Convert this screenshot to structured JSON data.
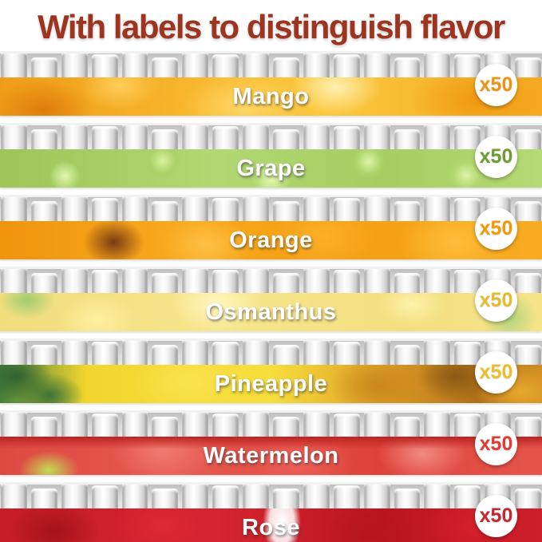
{
  "title": "With labels to distinguish flavor",
  "title_color": "#9c3420",
  "strips": [
    {
      "flavor": "Mango",
      "theme": "mango",
      "count_label": "x50",
      "badge_color": "#ee9311"
    },
    {
      "flavor": "Grape",
      "theme": "grape",
      "count_label": "x50",
      "badge_color": "#6f9c31"
    },
    {
      "flavor": "Orange",
      "theme": "orange",
      "count_label": "x50",
      "badge_color": "#f39806"
    },
    {
      "flavor": "Osmanthus",
      "theme": "osmanthus",
      "count_label": "x50",
      "badge_color": "#e2bc2d"
    },
    {
      "flavor": "Pineapple",
      "theme": "pineapple",
      "count_label": "x50",
      "badge_color": "#eebd2a"
    },
    {
      "flavor": "Watermelon",
      "theme": "watermelon",
      "count_label": "x50",
      "badge_color": "#e43a31"
    },
    {
      "flavor": "Rose",
      "theme": "rose",
      "count_label": "x50",
      "badge_color": "#c52630"
    }
  ]
}
